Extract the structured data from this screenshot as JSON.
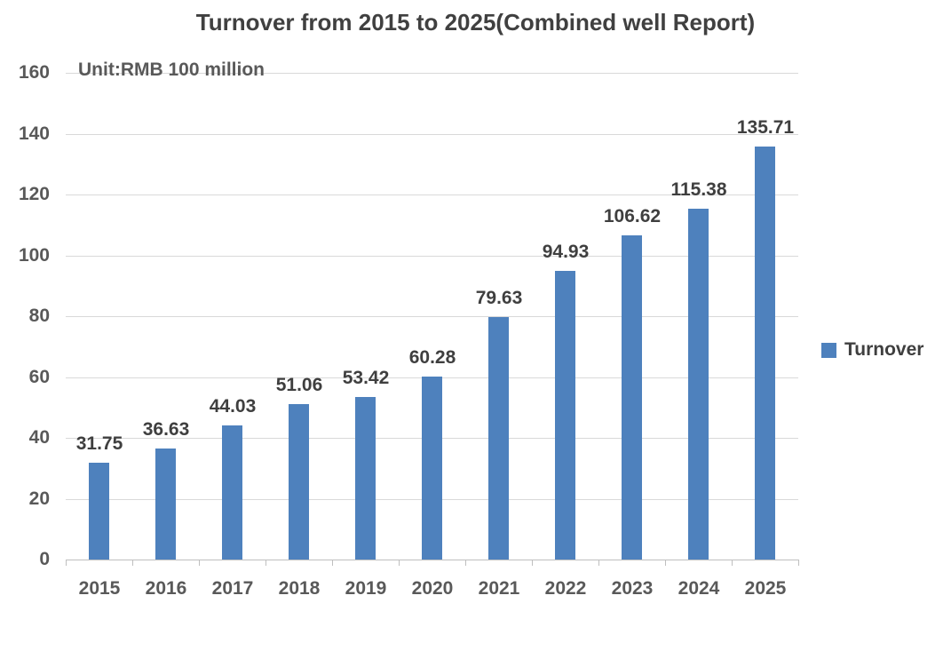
{
  "title": "Turnover from 2015 to 2025(Combined well Report)",
  "unit_note": "Unit:RMB 100 million",
  "legend": {
    "label": "Turnover",
    "position": "right"
  },
  "colors": {
    "bar": "#4e81bd",
    "gridline": "#d9d9d9",
    "axis_line": "#bfbfbf",
    "title_text": "#404040",
    "axis_text": "#595959",
    "label_text": "#3f3f3f"
  },
  "chart_data": {
    "type": "bar",
    "title": "Turnover from 2015 to 2025(Combined well Report)",
    "subtitle": "Unit:RMB 100 million",
    "categories": [
      "2015",
      "2016",
      "2017",
      "2018",
      "2019",
      "2020",
      "2021",
      "2022",
      "2023",
      "2024",
      "2025"
    ],
    "series": [
      {
        "name": "Turnover",
        "values": [
          31.75,
          36.63,
          44.03,
          51.06,
          53.42,
          60.28,
          79.63,
          94.93,
          106.62,
          115.38,
          135.71
        ]
      }
    ],
    "data_labels": [
      "31.75",
      "36.63",
      "44.03",
      "51.06",
      "53.42",
      "60.28",
      "79.63",
      "94.93",
      "106.62",
      "115.38",
      "135.71"
    ],
    "xlabel": "",
    "ylabel": "",
    "ylim": [
      0,
      160
    ],
    "yticks": [
      0,
      20,
      40,
      60,
      80,
      100,
      120,
      140,
      160
    ],
    "grid": true,
    "legend_position": "right"
  }
}
